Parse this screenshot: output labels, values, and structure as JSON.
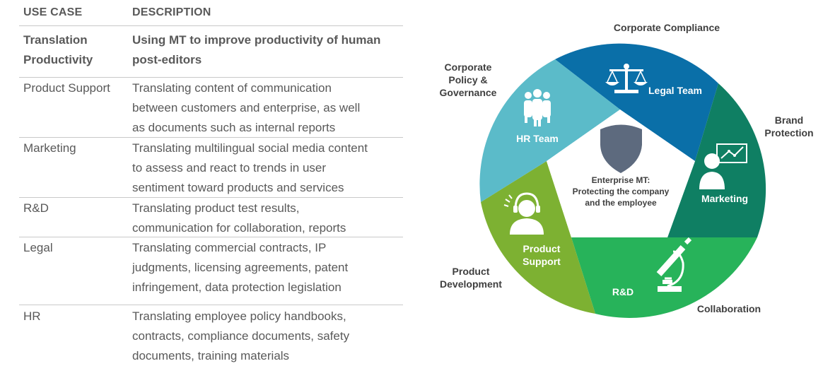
{
  "table": {
    "header": {
      "use_case": "USE CASE",
      "description": "DESCRIPTION"
    },
    "rows": [
      {
        "use_case": [
          "Translation",
          "Productivity"
        ],
        "description": [
          "Using MT to improve productivity of human",
          "post-editors"
        ]
      },
      {
        "use_case": [
          "Product Support"
        ],
        "description": [
          "Translating content of communication",
          "between customers and enterprise, as well",
          "as documents such as internal reports"
        ]
      },
      {
        "use_case": [
          "Marketing"
        ],
        "description": [
          "Translating multilingual social media content",
          "to assess and react to trends in user",
          "sentiment toward products and services"
        ]
      },
      {
        "use_case": [
          "R&D"
        ],
        "description": [
          "Translating product test results,",
          "communication for collaboration, reports"
        ]
      },
      {
        "use_case": [
          "Legal"
        ],
        "description": [
          "Translating commercial contracts, IP",
          "judgments, licensing agreements, patent",
          "infringement, data protection legislation"
        ]
      },
      {
        "use_case": [
          "HR"
        ],
        "description": [
          "Translating employee policy handbooks,",
          "contracts, compliance documents, safety",
          "documents, training materials"
        ]
      }
    ]
  },
  "diagram": {
    "center": [
      "Enterprise MT:",
      "Protecting the company",
      "and the employee"
    ],
    "segments": [
      {
        "label": [
          "Legal Team"
        ],
        "icon": "scales-icon",
        "color": "#0a6fa8"
      },
      {
        "label": [
          "Marketing"
        ],
        "icon": "presenter-chart-icon",
        "color": "#0f7f63"
      },
      {
        "label": [
          "R&D"
        ],
        "icon": "microscope-icon",
        "color": "#27b35a"
      },
      {
        "label": [
          "Product",
          "Support"
        ],
        "icon": "headset-agent-icon",
        "color": "#7db132"
      },
      {
        "label": [
          "HR Team"
        ],
        "icon": "people-group-icon",
        "color": "#5bbbc9"
      }
    ],
    "outer": {
      "corporate_compliance": [
        "Corporate Compliance"
      ],
      "brand_protection": [
        "Brand",
        "Protection"
      ],
      "collaboration": [
        "Collaboration"
      ],
      "product_development": [
        "Product",
        "Development"
      ],
      "corporate_policy": [
        "Corporate",
        "Policy &",
        "Governance"
      ]
    },
    "shield_color": "#5d6a7e"
  }
}
